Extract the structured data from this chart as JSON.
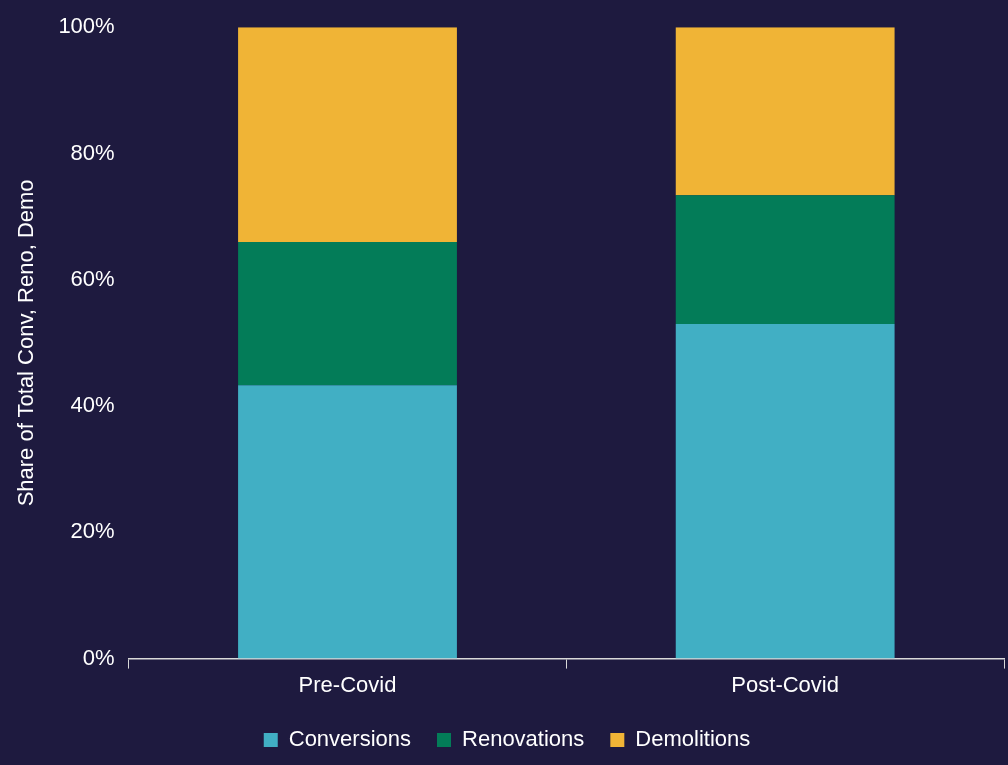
{
  "chart_data": {
    "type": "bar",
    "stacked": true,
    "ylabel": "Share of Total Conv, Reno, Demo",
    "categories": [
      "Pre-Covid",
      "Post-Covid"
    ],
    "series": [
      {
        "name": "Conversions",
        "color": "#41afc4",
        "values": [
          43.3,
          53.0
        ]
      },
      {
        "name": "Renovations",
        "color": "#037c58",
        "values": [
          22.7,
          20.4
        ]
      },
      {
        "name": "Demolitions",
        "color": "#f0b436",
        "values": [
          34.0,
          26.6
        ]
      }
    ],
    "ylim": [
      0,
      100
    ],
    "yticks": [
      {
        "value": 0,
        "label": "0%"
      },
      {
        "value": 20,
        "label": "20%"
      },
      {
        "value": 40,
        "label": "40%"
      },
      {
        "value": 60,
        "label": "60%"
      },
      {
        "value": 80,
        "label": "80%"
      },
      {
        "value": 100,
        "label": "100%"
      }
    ],
    "grid": false,
    "legend": "bottom"
  }
}
